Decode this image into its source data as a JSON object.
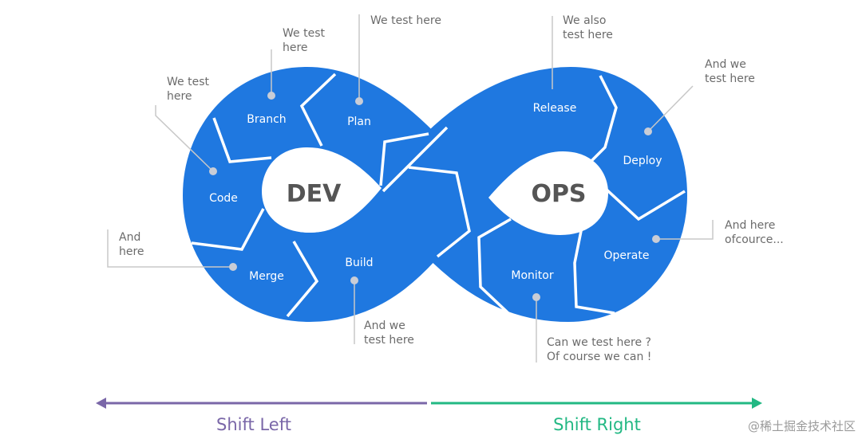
{
  "colors": {
    "loop": "#1f78e0",
    "shift_left": "#7a67a8",
    "shift_right": "#22b883",
    "callout": "#6b6b6b"
  },
  "core": {
    "dev": "DEV",
    "ops": "OPS"
  },
  "stages": {
    "branch": "Branch",
    "plan": "Plan",
    "code": "Code",
    "merge": "Merge",
    "build": "Build",
    "release": "Release",
    "deploy": "Deploy",
    "operate": "Operate",
    "monitor": "Monitor"
  },
  "callouts": {
    "branch": [
      "We test",
      "here"
    ],
    "plan": [
      "We test here"
    ],
    "code": [
      "We test",
      "here"
    ],
    "merge": [
      "And",
      "here"
    ],
    "build": [
      "And we",
      "test here"
    ],
    "release": [
      "We also",
      "test here"
    ],
    "deploy": [
      "And we",
      "test here"
    ],
    "operate": [
      "And here",
      "ofcource..."
    ],
    "monitor": [
      "Can we test here ?",
      "Of course we can !"
    ]
  },
  "arrows": {
    "left": "Shift Left",
    "right": "Shift Right"
  },
  "watermark": "@稀土掘金技术社区"
}
